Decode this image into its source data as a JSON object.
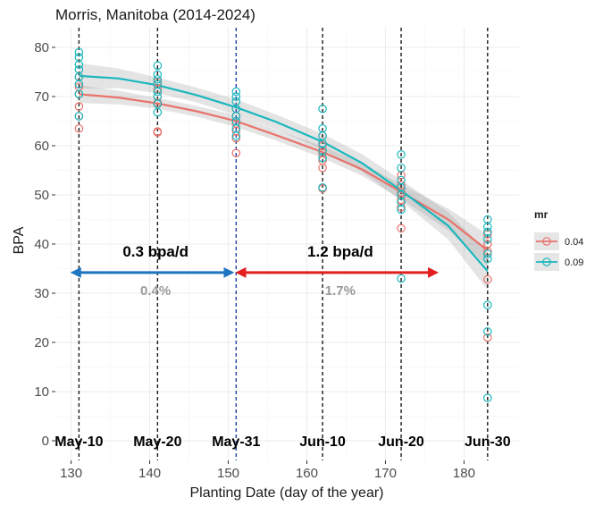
{
  "chart_data": {
    "type": "scatter",
    "title": "Morris, Manitoba (2014-2024)",
    "xlabel": "Planting Date (day of the year)",
    "ylabel": "BPA",
    "xlim": [
      128,
      187
    ],
    "ylim": [
      -4,
      84
    ],
    "x_ticks": [
      130,
      140,
      150,
      160,
      170,
      180
    ],
    "y_ticks": [
      0,
      10,
      20,
      30,
      40,
      50,
      60,
      70,
      80
    ],
    "grid": true,
    "legend": {
      "title": "mr",
      "position": "right"
    },
    "colors": {
      "0.04": "#e8736c",
      "0.09": "#1bb7bd",
      "blue_arrow": "#1f74c0",
      "red_arrow": "#e31e1e"
    },
    "date_markers": [
      {
        "day": 131,
        "label": "May-10",
        "line_color": "#1a1a1a"
      },
      {
        "day": 141,
        "label": "May-20",
        "line_color": "#1a1a1a"
      },
      {
        "day": 151,
        "label": "May-31",
        "line_color": "#1f3f9e"
      },
      {
        "day": 162,
        "label": "Jun-10",
        "line_color": "#1a1a1a"
      },
      {
        "day": 172,
        "label": "Jun-20",
        "line_color": "#1a1a1a"
      },
      {
        "day": 183,
        "label": "Jun-30",
        "line_color": "#1a1a1a"
      }
    ],
    "series": [
      {
        "name": "0.04",
        "points": [
          {
            "x": 131,
            "y": [
              63.5,
              66,
              68,
              70.5,
              72,
              74
            ]
          },
          {
            "x": 141,
            "y": [
              62.7,
              62.9,
              68.7,
              70,
              71.5,
              73
            ]
          },
          {
            "x": 151,
            "y": [
              58.5,
              61.5,
              63,
              64.5,
              66,
              67.5
            ]
          },
          {
            "x": 162,
            "y": [
              51.3,
              55.5,
              57,
              58.5,
              60,
              62
            ]
          },
          {
            "x": 172,
            "y": [
              43.2,
              47.5,
              49,
              50.5,
              52,
              54
            ]
          },
          {
            "x": 183,
            "y": [
              21,
              32.8,
              38.5,
              40,
              42
            ]
          }
        ],
        "fit": [
          [
            131,
            70.5
          ],
          [
            136,
            69.8
          ],
          [
            141,
            68.6
          ],
          [
            146,
            67
          ],
          [
            151,
            65
          ],
          [
            156,
            62.2
          ],
          [
            162,
            58.7
          ],
          [
            167,
            55.2
          ],
          [
            172,
            50.6
          ],
          [
            178,
            45
          ],
          [
            183,
            38.7
          ]
        ],
        "ci_halfwidth": [
          1.8,
          1.4,
          1.1,
          1.1,
          1.2,
          1.1,
          1.2,
          1.3,
          1.5,
          2.2,
          3.2
        ]
      },
      {
        "name": "0.09",
        "points": [
          {
            "x": 131,
            "y": [
              66,
              70.5,
              72.5,
              74,
              75.5,
              76.5,
              78,
              79
            ]
          },
          {
            "x": 141,
            "y": [
              66.8,
              68.5,
              70,
              71,
              72.5,
              73.5,
              74.5,
              76.3
            ]
          },
          {
            "x": 151,
            "y": [
              62,
              63.5,
              65,
              66,
              67.5,
              69,
              70,
              71
            ]
          },
          {
            "x": 162,
            "y": [
              51.5,
              57.5,
              59,
              60.5,
              62,
              63.5,
              67.5
            ]
          },
          {
            "x": 172,
            "y": [
              33,
              47,
              48.5,
              50,
              51.5,
              53,
              55.5,
              58.2
            ]
          },
          {
            "x": 183,
            "y": [
              8.7,
              22.2,
              27.6,
              37,
              38,
              41,
              42.5,
              43.5,
              45
            ]
          }
        ],
        "fit": [
          [
            131,
            74.2
          ],
          [
            136,
            73.7
          ],
          [
            141,
            72.3
          ],
          [
            146,
            70.3
          ],
          [
            151,
            67.8
          ],
          [
            156,
            64.9
          ],
          [
            162,
            60.8
          ],
          [
            167,
            56.5
          ],
          [
            172,
            50.9
          ],
          [
            178,
            43.7
          ],
          [
            183,
            34.5
          ]
        ],
        "ci_halfwidth": [
          2.6,
          2,
          1.6,
          1.5,
          1.6,
          1.5,
          1.6,
          1.8,
          2.1,
          2.8,
          3.8
        ]
      }
    ],
    "annotations": [
      {
        "from": 131,
        "to": 150.5,
        "y": 34.2,
        "color": "blue_arrow",
        "text": "0.3 bpa/d",
        "text_y": 37.5,
        "pct": "0.4%",
        "pct_y": 31.5
      },
      {
        "from": 152,
        "to": 176.5,
        "y": 34.2,
        "color": "red_arrow",
        "text": "1.2 bpa/d",
        "text_y": 37.5,
        "pct": "1.7%",
        "pct_y": 31.5
      }
    ]
  }
}
